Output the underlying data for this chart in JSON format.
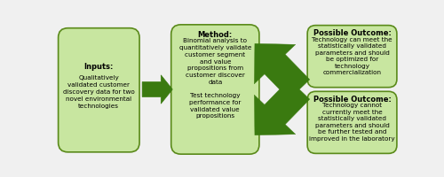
{
  "bg_color": "#f0f0f0",
  "box_fill": "#c8e6a0",
  "box_edge": "#5a8a1a",
  "arrow_color": "#3a7a10",
  "box1_title": "Inputs:",
  "box1_text": "Qualitatively\nvalidated customer\ndiscovery data for two\nnovel environmental\ntechnologies",
  "box2_title": "Method:",
  "box2_text": "Binomial analysis to\nquantitatively validate\ncustomer segment\nand value\npropositions from\ncustomer discover\ndata\n\nTest technology\nperformance for\nvalidated value\npropositions",
  "box3_title": "Possible Outcome:",
  "box3_text": "Technology can meet the\nstatistically validated\nparameters and should\nbe optimized for\ntechnology\ncommercialization",
  "box4_title": "Possible Outcome:",
  "box4_text": "Technology cannot\ncurrently meet the\nstatistically validated\nparameters and should\nbe further tested and\nimproved in the laboratory",
  "title_fontsize": 6.0,
  "body_fontsize": 5.2
}
